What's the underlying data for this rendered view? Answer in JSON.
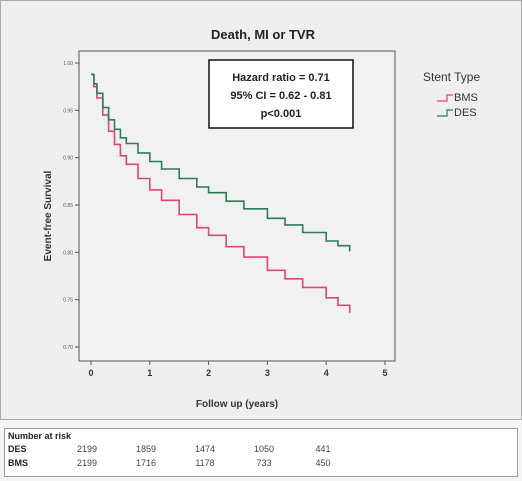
{
  "chart_data": {
    "type": "line",
    "title": "Death, MI or TVR",
    "xlabel": "Follow up (years)",
    "ylabel": "Event-free Survival",
    "xlim": [
      0,
      5
    ],
    "ylim": [
      0.7,
      1.0
    ],
    "x_ticks": [
      "0",
      "1",
      "2",
      "3",
      "4",
      "5"
    ],
    "y_ticks": [
      "0.70",
      "0.75",
      "0.80",
      "0.85",
      "0.90",
      "0.95",
      "1.00"
    ],
    "legend": {
      "title": "Stent Type",
      "position": "right",
      "entries": [
        "BMS",
        "DES"
      ]
    },
    "annotation": [
      "Hazard ratio = 0.71",
      "95% CI = 0.62 - 0.81",
      "p<0.001"
    ],
    "series": [
      {
        "name": "BMS",
        "color": "#e0427a",
        "x": [
          0,
          0.05,
          0.1,
          0.2,
          0.3,
          0.4,
          0.5,
          0.6,
          0.8,
          1.0,
          1.2,
          1.5,
          1.8,
          2.0,
          2.3,
          2.6,
          3.0,
          3.3,
          3.6,
          4.0,
          4.2,
          4.4
        ],
        "y": [
          0.988,
          0.975,
          0.963,
          0.945,
          0.928,
          0.914,
          0.902,
          0.893,
          0.878,
          0.866,
          0.855,
          0.84,
          0.826,
          0.818,
          0.806,
          0.795,
          0.781,
          0.772,
          0.763,
          0.752,
          0.744,
          0.736
        ]
      },
      {
        "name": "DES",
        "color": "#2e7d52",
        "x": [
          0,
          0.05,
          0.1,
          0.2,
          0.3,
          0.4,
          0.5,
          0.6,
          0.8,
          1.0,
          1.2,
          1.5,
          1.8,
          2.0,
          2.3,
          2.6,
          3.0,
          3.3,
          3.6,
          4.0,
          4.2,
          4.4
        ],
        "y": [
          0.988,
          0.978,
          0.968,
          0.953,
          0.94,
          0.93,
          0.921,
          0.915,
          0.905,
          0.896,
          0.888,
          0.878,
          0.869,
          0.863,
          0.854,
          0.846,
          0.836,
          0.829,
          0.821,
          0.812,
          0.807,
          0.801
        ]
      }
    ]
  },
  "risk_table": {
    "title": "Number at risk",
    "rows": [
      {
        "label": "DES",
        "values": [
          "2199",
          "1859",
          "1474",
          "1050",
          "441"
        ]
      },
      {
        "label": "BMS",
        "values": [
          "2199",
          "1716",
          "1178",
          "733",
          "450"
        ]
      }
    ]
  }
}
